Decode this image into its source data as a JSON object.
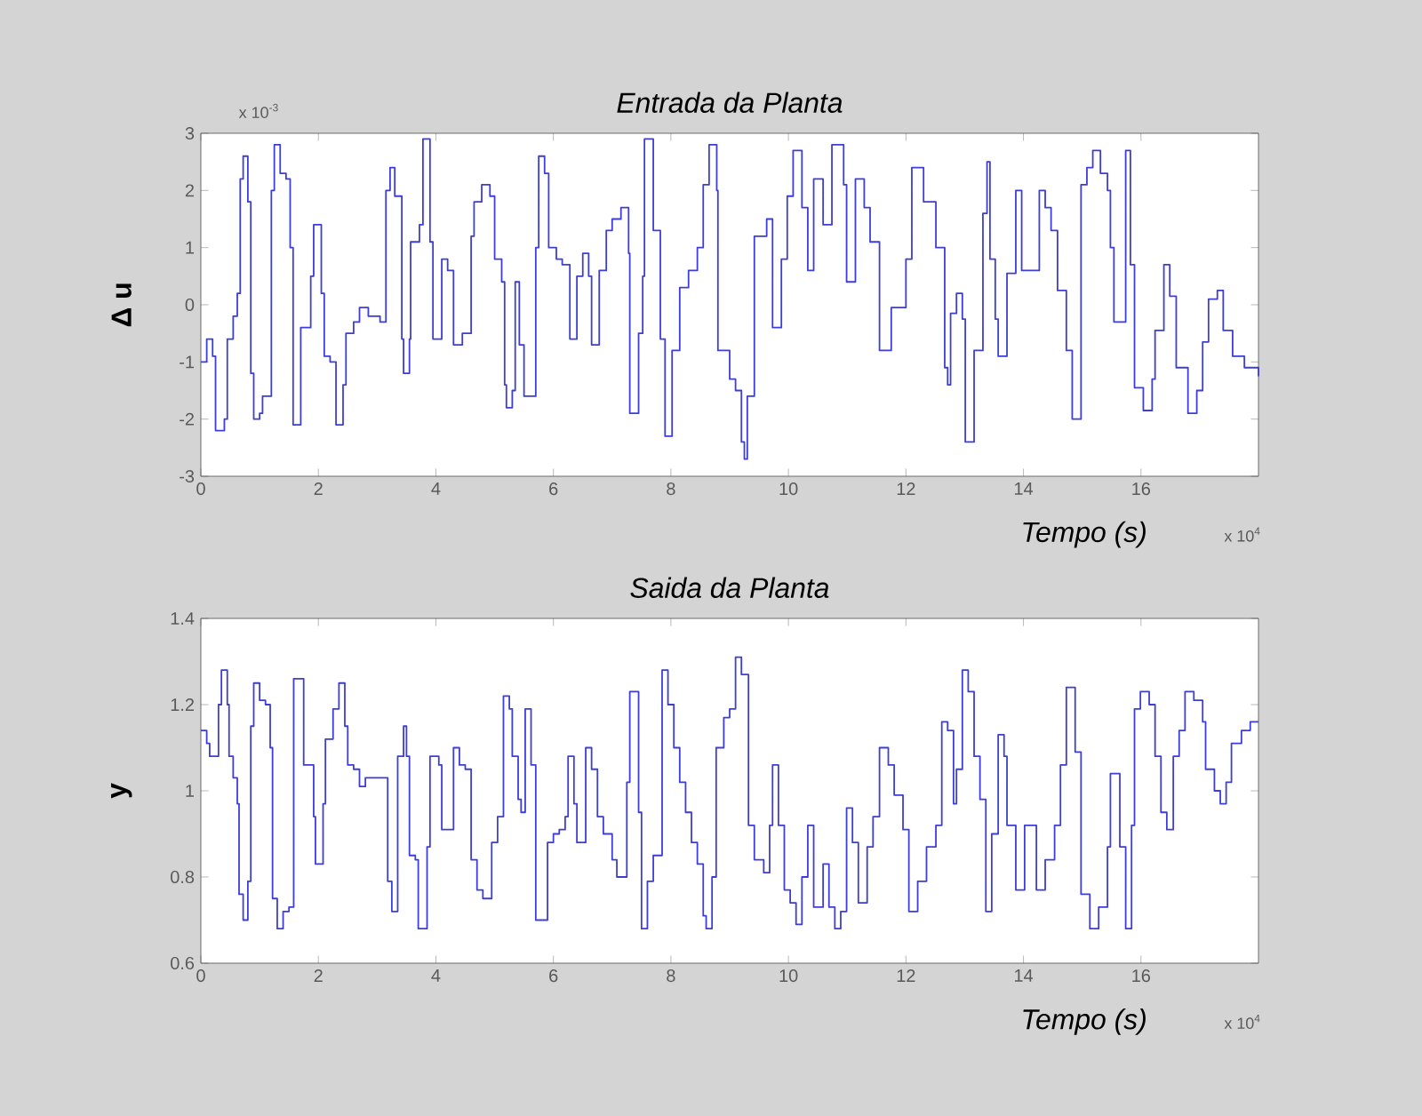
{
  "chart_data": [
    {
      "type": "step",
      "title": "Entrada da Planta",
      "xlabel": "Tempo (s)",
      "ylabel": "Δ u",
      "color": "#3d3dd8",
      "annotations": [
        "x 10$^{-3}$",
        "x 10$^{4}$"
      ],
      "xlim": [
        0,
        18
      ],
      "xticks": [
        0,
        2,
        4,
        6,
        8,
        10,
        12,
        14,
        16
      ],
      "ylim": [
        -3,
        3
      ],
      "yticks": [
        -3,
        -2,
        -1,
        0,
        1,
        2,
        3
      ],
      "x": [
        0,
        0.1,
        0.2,
        0.25,
        0.4,
        0.45,
        0.55,
        0.62,
        0.67,
        0.72,
        0.8,
        0.85,
        0.9,
        1.0,
        1.05,
        1.2,
        1.25,
        1.35,
        1.45,
        1.52,
        1.57,
        1.7,
        1.8,
        1.87,
        1.92,
        2.05,
        2.1,
        2.2,
        2.3,
        2.42,
        2.47,
        2.6,
        2.7,
        2.85,
        3.05,
        3.15,
        3.22,
        3.3,
        3.42,
        3.45,
        3.55,
        3.57,
        3.72,
        3.78,
        3.9,
        3.95,
        4.05,
        4.1,
        4.2,
        4.3,
        4.45,
        4.6,
        4.65,
        4.78,
        4.92,
        5.0,
        5.12,
        5.17,
        5.2,
        5.3,
        5.35,
        5.42,
        5.5,
        5.7,
        5.75,
        5.85,
        5.92,
        6.05,
        6.15,
        6.28,
        6.4,
        6.5,
        6.6,
        6.65,
        6.78,
        6.9,
        7.0,
        7.15,
        7.28,
        7.3,
        7.45,
        7.52,
        7.55,
        7.7,
        7.82,
        7.9,
        8.02,
        8.15,
        8.3,
        8.45,
        8.55,
        8.65,
        8.78,
        8.8,
        9.0,
        9.1,
        9.2,
        9.25,
        9.3,
        9.42,
        9.63,
        9.73,
        9.88,
        9.98,
        10.08,
        10.23,
        10.33,
        10.43,
        10.59,
        10.74,
        10.94,
        10.99,
        11.14,
        11.29,
        11.39,
        11.55,
        11.75,
        12.0,
        12.1,
        12.3,
        12.51,
        12.66,
        12.71,
        12.76,
        12.86,
        12.96,
        13.01,
        13.16,
        13.31,
        13.38,
        13.43,
        13.52,
        13.57,
        13.72,
        13.87,
        13.97,
        14.12,
        14.27,
        14.37,
        14.47,
        14.58,
        14.73,
        14.83,
        14.98,
        15.08,
        15.18,
        15.31,
        15.43,
        15.48,
        15.54,
        15.74,
        15.82,
        15.89,
        16.04,
        16.19,
        16.24,
        16.39,
        16.49,
        16.6,
        16.8,
        16.95,
        17.05,
        17.15,
        17.3,
        17.4,
        17.56,
        17.76,
        18.0
      ],
      "values": [
        -1.0,
        -0.6,
        -0.9,
        -2.2,
        -2.0,
        -0.6,
        -0.2,
        0.2,
        2.2,
        2.6,
        1.8,
        -1.2,
        -2.0,
        -1.9,
        -1.6,
        2.0,
        2.8,
        2.3,
        2.2,
        1.0,
        -2.1,
        -0.4,
        -0.4,
        0.5,
        1.4,
        0.2,
        -0.9,
        -1.0,
        -2.1,
        -1.4,
        -0.5,
        -0.3,
        -0.05,
        -0.2,
        -0.3,
        2.0,
        2.4,
        1.9,
        -0.6,
        -1.2,
        -0.6,
        1.1,
        1.4,
        2.9,
        1.1,
        -0.6,
        -0.6,
        0.8,
        0.6,
        -0.7,
        -0.5,
        1.2,
        1.8,
        2.1,
        1.9,
        0.8,
        0.4,
        -1.4,
        -1.8,
        -1.5,
        0.4,
        -0.7,
        -1.6,
        1.0,
        2.6,
        2.3,
        1.0,
        0.8,
        0.7,
        -0.6,
        0.5,
        0.9,
        0.5,
        -0.7,
        0.6,
        1.3,
        1.5,
        1.7,
        0.9,
        -1.9,
        -0.5,
        0.5,
        2.9,
        1.3,
        -0.6,
        -2.3,
        -0.8,
        0.3,
        0.6,
        1.0,
        2.1,
        2.8,
        2.0,
        -0.8,
        -1.3,
        -1.5,
        -2.4,
        -2.7,
        -1.6,
        1.2,
        1.5,
        -0.4,
        0.8,
        1.9,
        2.7,
        1.7,
        0.6,
        2.2,
        1.4,
        2.8,
        2.1,
        0.4,
        2.2,
        1.7,
        1.1,
        -0.8,
        -0.05,
        0.8,
        2.4,
        1.8,
        1.0,
        -1.1,
        -1.4,
        -0.15,
        0.2,
        -0.25,
        -2.4,
        -0.8,
        1.6,
        2.5,
        0.8,
        -0.25,
        -0.9,
        0.55,
        2.0,
        0.6,
        0.6,
        2.0,
        1.7,
        1.3,
        0.25,
        -0.8,
        -2.0,
        2.1,
        2.4,
        2.7,
        2.3,
        2.0,
        1.0,
        -0.3,
        2.7,
        0.7,
        -1.45,
        -1.85,
        -1.3,
        -0.45,
        0.7,
        0.15,
        -1.1,
        -1.9,
        -1.5,
        -0.65,
        0.1,
        0.25,
        -0.45,
        -0.9,
        -1.1,
        -1.25
      ]
    },
    {
      "type": "step",
      "title": "Saida da Planta",
      "xlabel": "Tempo (s)",
      "ylabel": "y",
      "color": "#3d3dd8",
      "annotations": [
        "x 10$^{4}$"
      ],
      "xlim": [
        0,
        18
      ],
      "xticks": [
        0,
        2,
        4,
        6,
        8,
        10,
        12,
        14,
        16
      ],
      "ylim": [
        0.6,
        1.4
      ],
      "yticks": [
        0.6,
        0.8,
        1,
        1.2,
        1.4
      ],
      "x": [
        0,
        0.1,
        0.15,
        0.3,
        0.35,
        0.45,
        0.48,
        0.55,
        0.62,
        0.65,
        0.72,
        0.8,
        0.85,
        0.9,
        1.0,
        1.1,
        1.18,
        1.22,
        1.3,
        1.4,
        1.5,
        1.58,
        1.75,
        1.85,
        1.92,
        1.95,
        2.08,
        2.12,
        2.25,
        2.35,
        2.45,
        2.5,
        2.6,
        2.7,
        2.8,
        3.18,
        3.25,
        3.35,
        3.45,
        3.5,
        3.55,
        3.65,
        3.7,
        3.85,
        3.9,
        4.05,
        4.1,
        4.3,
        4.4,
        4.5,
        4.6,
        4.7,
        4.8,
        4.95,
        5.05,
        5.15,
        5.25,
        5.3,
        5.4,
        5.45,
        5.52,
        5.62,
        5.7,
        5.9,
        6.0,
        6.1,
        6.2,
        6.25,
        6.35,
        6.4,
        6.55,
        6.65,
        6.75,
        6.85,
        7.0,
        7.08,
        7.25,
        7.3,
        7.45,
        7.5,
        7.6,
        7.7,
        7.85,
        7.95,
        8.05,
        8.15,
        8.25,
        8.35,
        8.45,
        8.55,
        8.6,
        8.7,
        8.77,
        8.9,
        9.0,
        9.1,
        9.2,
        9.32,
        9.42,
        9.58,
        9.68,
        9.73,
        9.83,
        9.93,
        10.03,
        10.13,
        10.23,
        10.33,
        10.43,
        10.59,
        10.69,
        10.79,
        10.89,
        10.99,
        11.09,
        11.19,
        11.34,
        11.44,
        11.55,
        11.7,
        11.8,
        11.95,
        12.05,
        12.2,
        12.35,
        12.51,
        12.61,
        12.71,
        12.81,
        12.86,
        12.96,
        13.06,
        13.16,
        13.26,
        13.36,
        13.46,
        13.57,
        13.67,
        13.72,
        13.87,
        14.02,
        14.22,
        14.37,
        14.53,
        14.63,
        14.73,
        14.88,
        14.98,
        15.13,
        15.28,
        15.43,
        15.48,
        15.64,
        15.74,
        15.84,
        15.89,
        15.99,
        16.14,
        16.24,
        16.34,
        16.44,
        16.55,
        16.65,
        16.75,
        16.9,
        17.05,
        17.1,
        17.25,
        17.35,
        17.45,
        17.54,
        17.71,
        17.86,
        18.0
      ],
      "values": [
        1.14,
        1.11,
        1.08,
        1.2,
        1.28,
        1.2,
        1.08,
        1.03,
        0.97,
        0.76,
        0.7,
        0.79,
        1.15,
        1.25,
        1.21,
        1.2,
        1.1,
        0.75,
        0.68,
        0.72,
        0.73,
        1.26,
        1.06,
        1.06,
        0.94,
        0.83,
        0.97,
        1.12,
        1.19,
        1.25,
        1.15,
        1.06,
        1.05,
        1.01,
        1.03,
        0.79,
        0.72,
        1.08,
        1.15,
        1.08,
        0.85,
        0.84,
        0.68,
        0.87,
        1.08,
        1.06,
        0.91,
        1.1,
        1.06,
        1.05,
        0.84,
        0.77,
        0.75,
        0.88,
        0.94,
        1.22,
        1.19,
        1.08,
        0.98,
        0.95,
        1.19,
        1.06,
        0.7,
        0.88,
        0.9,
        0.91,
        0.94,
        1.08,
        0.97,
        0.88,
        1.1,
        1.05,
        0.94,
        0.9,
        0.84,
        0.8,
        1.02,
        1.23,
        0.95,
        0.68,
        0.79,
        0.85,
        1.28,
        1.2,
        1.1,
        1.02,
        0.95,
        0.88,
        0.83,
        0.71,
        0.68,
        0.8,
        1.1,
        1.17,
        1.19,
        1.31,
        1.27,
        0.92,
        0.84,
        0.81,
        0.92,
        1.06,
        0.92,
        0.77,
        0.74,
        0.69,
        0.8,
        0.92,
        0.73,
        0.83,
        0.73,
        0.68,
        0.72,
        0.96,
        0.88,
        0.74,
        0.87,
        0.94,
        1.1,
        1.06,
        0.99,
        0.91,
        0.72,
        0.79,
        0.87,
        0.92,
        1.16,
        1.14,
        0.97,
        1.05,
        1.28,
        1.23,
        1.08,
        0.98,
        0.72,
        0.9,
        1.13,
        1.08,
        0.92,
        0.77,
        0.92,
        0.77,
        0.84,
        0.92,
        1.06,
        1.24,
        1.09,
        0.76,
        0.68,
        0.73,
        0.87,
        1.04,
        0.87,
        0.68,
        0.92,
        1.19,
        1.23,
        1.2,
        1.08,
        0.95,
        0.91,
        1.08,
        1.14,
        1.23,
        1.21,
        1.16,
        1.05,
        1.0,
        0.97,
        1.02,
        1.11,
        1.14,
        1.16,
        1.16
      ]
    }
  ]
}
